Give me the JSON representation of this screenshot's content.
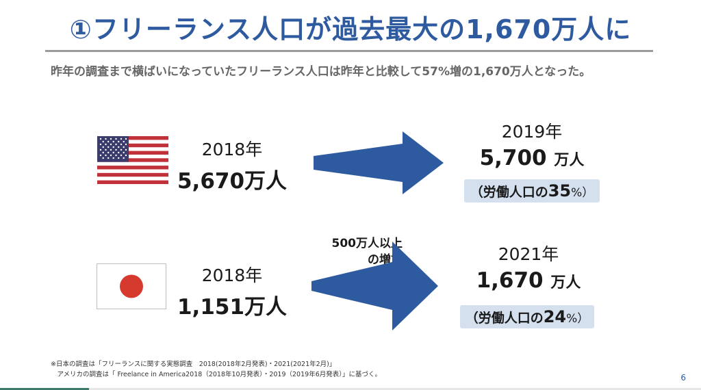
{
  "slide": {
    "title": "①フリーランス人口が過去最大の1,670万人に",
    "lead": "昨年の調査まで横ばいになっていたフリーランス人口は昨年と比較して57%増の1,670万人となった。",
    "page_number": "6"
  },
  "usa": {
    "from_year": "2018年",
    "from_amount": "5,670万人",
    "to_year": "2019年",
    "to_amount_value": "5,700",
    "to_amount_unit": "万人",
    "labor_prefix": "（労働人口の",
    "labor_share": "35",
    "labor_suffix": "%）",
    "flag_icon": "usa-flag-icon"
  },
  "japan": {
    "from_year": "2018年",
    "from_amount": "1,151万人",
    "to_year": "2021年",
    "to_amount_value": "1,670",
    "to_amount_unit": "万人",
    "labor_prefix": "（労働人口の",
    "labor_share": "24",
    "labor_suffix": "%）",
    "increase_line1": "500万人以上",
    "increase_line2": "の増加",
    "flag_icon": "japan-flag-icon"
  },
  "notes": {
    "line1": "※日本の調査は「フリーランスに関する実態調査　2018(2018年2月発表)・2021(2021年2月)」",
    "line2": "　アメリカの調査は「 Freelance in America2018（2018年10月発表）・2019（2019年6月発表）」に基づく。"
  },
  "colors": {
    "title": "#2e5aa0",
    "arrow": "#2e5aa0",
    "badge": "#d4e0ee",
    "japan_circle": "#d63a2f",
    "usa_red": "#c0313a",
    "usa_blue": "#3c3b6e"
  }
}
